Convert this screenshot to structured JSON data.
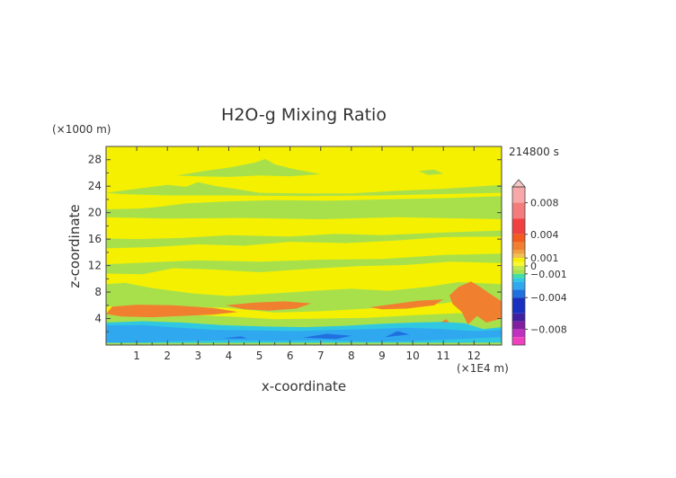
{
  "chart_data": {
    "type": "heatmap",
    "title": "H2O-g Mixing Ratio",
    "xlabel": "x-coordinate",
    "ylabel": "z-coordinate",
    "x_unit": "(×1E4 m)",
    "y_unit": "(×1000 m)",
    "time_label": "214800 s",
    "x_ticks": [
      "1",
      "2",
      "3",
      "4",
      "5",
      "6",
      "7",
      "8",
      "9",
      "10",
      "11",
      "12"
    ],
    "y_ticks": [
      "4",
      "8",
      "12",
      "16",
      "20",
      "24",
      "28"
    ],
    "xlim": [
      0,
      12.9
    ],
    "ylim": [
      0,
      30
    ],
    "colorbar": {
      "range": [
        -0.01,
        0.01
      ],
      "tick_labels": [
        {
          "value": 0.008,
          "label": "0.008"
        },
        {
          "value": 0.004,
          "label": "0.004"
        },
        {
          "value": 0.001,
          "label": "0.001"
        },
        {
          "value": 0.0,
          "label": "0"
        },
        {
          "value": -0.001,
          "label": "−0.001"
        },
        {
          "value": -0.004,
          "label": "−0.004"
        },
        {
          "value": -0.008,
          "label": "−0.008"
        }
      ],
      "bins": [
        {
          "from": 0.008,
          "to": 0.01,
          "color": "#f8a8a8"
        },
        {
          "from": 0.006,
          "to": 0.008,
          "color": "#f47c7c"
        },
        {
          "from": 0.004,
          "to": 0.006,
          "color": "#f04040"
        },
        {
          "from": 0.003,
          "to": 0.004,
          "color": "#f25a1e"
        },
        {
          "from": 0.002,
          "to": 0.003,
          "color": "#f08030"
        },
        {
          "from": 0.0015,
          "to": 0.002,
          "color": "#f0a040"
        },
        {
          "from": 0.001,
          "to": 0.0015,
          "color": "#f0c050"
        },
        {
          "from": 0.0005,
          "to": 0.001,
          "color": "#f5f000"
        },
        {
          "from": 0.0,
          "to": 0.0005,
          "color": "#f8f830"
        },
        {
          "from": -0.0005,
          "to": 0.0,
          "color": "#c0e850"
        },
        {
          "from": -0.001,
          "to": -0.0005,
          "color": "#a8e04c"
        },
        {
          "from": -0.0015,
          "to": -0.001,
          "color": "#40e0a0"
        },
        {
          "from": -0.002,
          "to": -0.0015,
          "color": "#30c8e0"
        },
        {
          "from": -0.003,
          "to": -0.002,
          "color": "#30a8f0"
        },
        {
          "from": -0.004,
          "to": -0.003,
          "color": "#2070e0"
        },
        {
          "from": -0.006,
          "to": -0.004,
          "color": "#1830c0"
        },
        {
          "from": -0.007,
          "to": -0.006,
          "color": "#4020a0"
        },
        {
          "from": -0.008,
          "to": -0.007,
          "color": "#8020a0"
        },
        {
          "from": -0.009,
          "to": -0.008,
          "color": "#c030c0"
        },
        {
          "from": -0.01,
          "to": -0.009,
          "color": "#f040c0"
        }
      ]
    },
    "background_color": "#f5f000",
    "regions": [
      {
        "level": "yellow",
        "color": "#f5f000",
        "points": [
          [
            0,
            0
          ],
          [
            12.9,
            0
          ],
          [
            12.9,
            30
          ],
          [
            0,
            30
          ]
        ]
      },
      {
        "level": "green",
        "color": "#a8e04c",
        "points": [
          [
            0,
            0
          ],
          [
            12.9,
            0
          ],
          [
            12.9,
            9.2
          ],
          [
            11.5,
            9.5
          ],
          [
            10.5,
            8.8
          ],
          [
            9.2,
            8.2
          ],
          [
            8.0,
            8.5
          ],
          [
            6.8,
            8.2
          ],
          [
            5.5,
            7.8
          ],
          [
            4.0,
            7.4
          ],
          [
            2.8,
            7.8
          ],
          [
            1.5,
            8.6
          ],
          [
            0.6,
            9.4
          ],
          [
            0,
            9.2
          ]
        ]
      },
      {
        "level": "green",
        "color": "#a8e04c",
        "points": [
          [
            0,
            10.8
          ],
          [
            1.2,
            10.7
          ],
          [
            2.2,
            11.6
          ],
          [
            3.5,
            11.4
          ],
          [
            5.0,
            11.0
          ],
          [
            6.6,
            11.5
          ],
          [
            8.2,
            11.9
          ],
          [
            9.8,
            12.1
          ],
          [
            11.2,
            12.6
          ],
          [
            12.9,
            12.4
          ],
          [
            12.9,
            13.8
          ],
          [
            11.0,
            13.6
          ],
          [
            9.0,
            13.0
          ],
          [
            7.0,
            12.9
          ],
          [
            5.0,
            12.6
          ],
          [
            3.0,
            12.8
          ],
          [
            1.5,
            12.5
          ],
          [
            0,
            12.2
          ]
        ]
      },
      {
        "level": "green",
        "color": "#a8e04c",
        "points": [
          [
            0,
            14.6
          ],
          [
            1.5,
            14.8
          ],
          [
            3.0,
            15.2
          ],
          [
            4.5,
            15.0
          ],
          [
            6.0,
            15.6
          ],
          [
            7.8,
            15.4
          ],
          [
            9.5,
            15.8
          ],
          [
            11.0,
            16.3
          ],
          [
            12.9,
            16.4
          ],
          [
            12.9,
            17.3
          ],
          [
            11.0,
            17.0
          ],
          [
            9.0,
            16.6
          ],
          [
            7.5,
            16.8
          ],
          [
            6.0,
            16.4
          ],
          [
            4.0,
            16.6
          ],
          [
            2.5,
            16.2
          ],
          [
            1.0,
            16.0
          ],
          [
            0,
            16.1
          ]
        ]
      },
      {
        "level": "green",
        "color": "#a8e04c",
        "points": [
          [
            0,
            19.3
          ],
          [
            2.0,
            19.1
          ],
          [
            4.5,
            19.2
          ],
          [
            7.0,
            19.0
          ],
          [
            9.5,
            19.3
          ],
          [
            12.9,
            19.0
          ],
          [
            12.9,
            22.5
          ],
          [
            11.0,
            22.2
          ],
          [
            9.0,
            22.0
          ],
          [
            7.2,
            21.8
          ],
          [
            5.5,
            21.9
          ],
          [
            4.0,
            21.7
          ],
          [
            2.6,
            21.4
          ],
          [
            1.6,
            20.8
          ],
          [
            1.0,
            20.6
          ],
          [
            0,
            20.5
          ]
        ]
      },
      {
        "level": "green",
        "color": "#a8e04c",
        "points": [
          [
            0,
            23.0
          ],
          [
            1.0,
            23.6
          ],
          [
            2.0,
            24.2
          ],
          [
            2.6,
            23.9
          ],
          [
            3.0,
            24.6
          ],
          [
            3.6,
            24.0
          ],
          [
            4.2,
            23.6
          ],
          [
            5.0,
            23.0
          ],
          [
            6.5,
            22.9
          ],
          [
            8.0,
            22.9
          ],
          [
            9.5,
            23.3
          ],
          [
            11.0,
            23.6
          ],
          [
            12.9,
            24.2
          ],
          [
            12.9,
            23.0
          ],
          [
            11.0,
            22.8
          ],
          [
            9.0,
            22.6
          ],
          [
            6.5,
            22.5
          ],
          [
            4.0,
            22.6
          ],
          [
            2.0,
            22.6
          ],
          [
            0.5,
            22.8
          ]
        ]
      },
      {
        "level": "green",
        "color": "#a8e04c",
        "points": [
          [
            2.3,
            25.6
          ],
          [
            3.2,
            26.3
          ],
          [
            4.0,
            26.8
          ],
          [
            4.8,
            27.5
          ],
          [
            5.2,
            28.1
          ],
          [
            5.5,
            27.3
          ],
          [
            6.1,
            26.6
          ],
          [
            7.0,
            25.8
          ],
          [
            6.0,
            25.5
          ],
          [
            5.0,
            25.6
          ],
          [
            4.0,
            25.4
          ],
          [
            3.0,
            25.5
          ]
        ]
      },
      {
        "level": "green",
        "color": "#a8e04c",
        "points": [
          [
            10.2,
            26.3
          ],
          [
            10.7,
            26.5
          ],
          [
            11.0,
            25.9
          ],
          [
            10.5,
            25.7
          ]
        ]
      },
      {
        "level": "yellow",
        "color": "#f5f000",
        "points": [
          [
            0,
            5.8
          ],
          [
            2.0,
            5.9
          ],
          [
            4.0,
            5.6
          ],
          [
            5.5,
            4.9
          ],
          [
            7.0,
            5.1
          ],
          [
            8.5,
            5.5
          ],
          [
            9.8,
            6.0
          ],
          [
            11.0,
            6.3
          ],
          [
            11.8,
            6.8
          ],
          [
            12.9,
            6.4
          ],
          [
            12.9,
            4.6
          ],
          [
            11.5,
            4.8
          ],
          [
            10.0,
            4.5
          ],
          [
            8.5,
            4.1
          ],
          [
            7.0,
            4.0
          ],
          [
            5.5,
            3.9
          ],
          [
            4.0,
            4.3
          ],
          [
            2.5,
            4.6
          ],
          [
            1.0,
            4.8
          ],
          [
            0,
            4.7
          ]
        ]
      },
      {
        "level": "orange",
        "color": "#f08030",
        "points": [
          [
            0,
            4.7
          ],
          [
            0.2,
            5.8
          ],
          [
            1.0,
            6.1
          ],
          [
            2.2,
            6.0
          ],
          [
            3.5,
            5.6
          ],
          [
            4.3,
            5.0
          ],
          [
            3.5,
            4.6
          ],
          [
            2.5,
            4.4
          ],
          [
            1.5,
            4.2
          ],
          [
            0.5,
            4.3
          ]
        ]
      },
      {
        "level": "orange",
        "color": "#f08030",
        "points": [
          [
            3.9,
            6.0
          ],
          [
            4.8,
            6.4
          ],
          [
            5.8,
            6.6
          ],
          [
            6.7,
            6.3
          ],
          [
            6.2,
            5.5
          ],
          [
            5.3,
            5.2
          ],
          [
            4.5,
            5.4
          ]
        ]
      },
      {
        "level": "orange",
        "color": "#f08030",
        "points": [
          [
            8.6,
            5.7
          ],
          [
            9.4,
            6.2
          ],
          [
            10.2,
            6.7
          ],
          [
            11.0,
            6.9
          ],
          [
            10.7,
            6.0
          ],
          [
            9.8,
            5.5
          ],
          [
            9.0,
            5.4
          ]
        ]
      },
      {
        "level": "orange",
        "color": "#f08030",
        "points": [
          [
            11.2,
            7.5
          ],
          [
            11.5,
            8.8
          ],
          [
            11.9,
            9.6
          ],
          [
            12.2,
            8.8
          ],
          [
            12.5,
            7.8
          ],
          [
            12.9,
            6.6
          ],
          [
            12.9,
            4.0
          ],
          [
            12.4,
            3.4
          ],
          [
            12.1,
            4.4
          ],
          [
            11.8,
            3.1
          ],
          [
            11.6,
            5.0
          ],
          [
            11.3,
            6.2
          ]
        ]
      },
      {
        "level": "orange",
        "color": "#f08030",
        "points": [
          [
            10.6,
            2.7
          ],
          [
            11.1,
            3.9
          ],
          [
            11.3,
            2.8
          ],
          [
            11.0,
            1.6
          ]
        ]
      },
      {
        "level": "cyan",
        "color": "#30c8e0",
        "points": [
          [
            0,
            0
          ],
          [
            12.9,
            0
          ],
          [
            12.9,
            2.7
          ],
          [
            12.3,
            2.4
          ],
          [
            11.7,
            3.3
          ],
          [
            10.9,
            3.5
          ],
          [
            10.0,
            3.4
          ],
          [
            9.0,
            3.2
          ],
          [
            7.8,
            2.9
          ],
          [
            6.5,
            2.7
          ],
          [
            5.2,
            2.8
          ],
          [
            3.8,
            3.0
          ],
          [
            2.5,
            3.4
          ],
          [
            1.2,
            3.6
          ],
          [
            0,
            3.4
          ]
        ]
      },
      {
        "level": "blue",
        "color": "#30a8f0",
        "points": [
          [
            0,
            0.4
          ],
          [
            1.2,
            0.4
          ],
          [
            2.4,
            0.6
          ],
          [
            4.0,
            0.7
          ],
          [
            5.5,
            0.6
          ],
          [
            7.0,
            0.7
          ],
          [
            8.5,
            0.5
          ],
          [
            10.0,
            0.6
          ],
          [
            11.5,
            0.9
          ],
          [
            12.9,
            1.2
          ],
          [
            12.9,
            2.3
          ],
          [
            12.0,
            2.1
          ],
          [
            11.0,
            2.4
          ],
          [
            9.8,
            2.6
          ],
          [
            8.6,
            2.4
          ],
          [
            7.4,
            2.3
          ],
          [
            6.2,
            2.1
          ],
          [
            5.0,
            2.2
          ],
          [
            3.6,
            2.3
          ],
          [
            2.4,
            2.6
          ],
          [
            1.2,
            3.0
          ],
          [
            0,
            3.0
          ]
        ]
      },
      {
        "level": "darkblue",
        "color": "#2070e0",
        "points": [
          [
            6.4,
            1.1
          ],
          [
            7.2,
            1.7
          ],
          [
            8.0,
            1.4
          ],
          [
            7.5,
            0.9
          ]
        ]
      },
      {
        "level": "darkblue",
        "color": "#2070e0",
        "points": [
          [
            9.1,
            1.2
          ],
          [
            9.5,
            2.1
          ],
          [
            9.9,
            1.6
          ]
        ]
      },
      {
        "level": "darkblue",
        "color": "#2070e0",
        "points": [
          [
            3.8,
            1.0
          ],
          [
            4.4,
            1.3
          ],
          [
            4.6,
            1.0
          ]
        ]
      },
      {
        "level": "green",
        "color": "#a8e04c",
        "points": [
          [
            0,
            0
          ],
          [
            12.9,
            0
          ],
          [
            12.9,
            0.35
          ],
          [
            0,
            0.3
          ]
        ]
      }
    ]
  }
}
